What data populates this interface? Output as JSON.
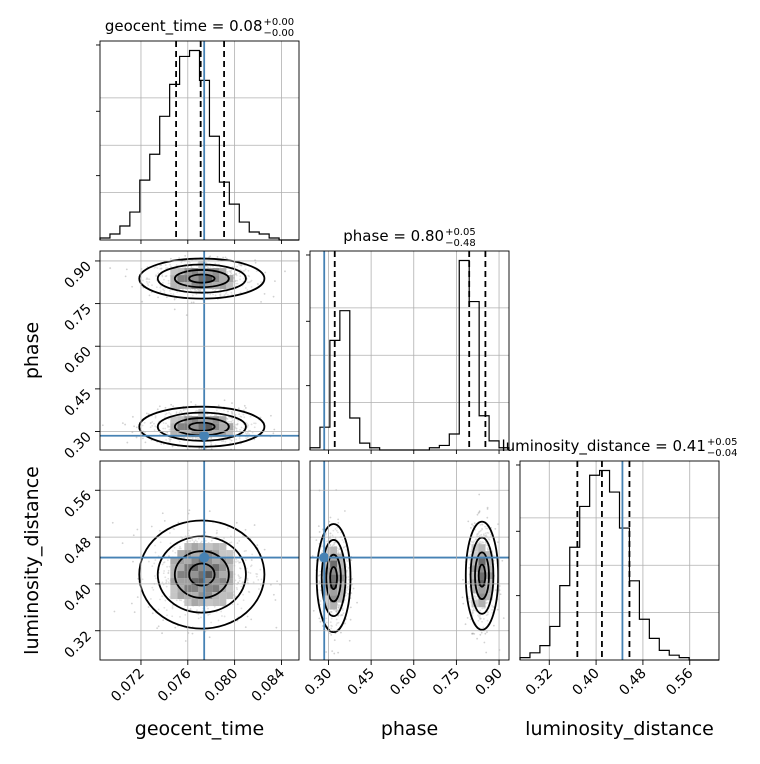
{
  "chart_data": {
    "type": "corner",
    "truth": {
      "geocent_time": 0.0774,
      "phase": 0.285,
      "luminosity_distance": 0.445,
      "color": "#4682b4"
    },
    "params": [
      {
        "name": "geocent_time",
        "axis_label": "geocent_time",
        "title_main": "geocent_time = 0.08",
        "title_sup": "+0.00",
        "title_sub": "−0.00",
        "range": [
          0.0685,
          0.0855
        ],
        "ticks": [
          0.072,
          0.076,
          0.08,
          0.084
        ],
        "tick_labels": [
          "0.072",
          "0.076",
          "0.080",
          "0.084"
        ],
        "quantiles": [
          0.075,
          0.0771,
          0.0791
        ],
        "hist_edges_start": 0.0685,
        "hist_bin_width": 0.00085,
        "hist_counts": [
          1,
          3,
          7,
          14,
          30,
          43,
          62,
          78,
          92,
          95,
          80,
          52,
          29,
          18,
          9,
          4,
          3,
          1,
          0,
          0
        ]
      },
      {
        "name": "phase",
        "axis_label": "phase",
        "title_main": "phase = 0.80",
        "title_sup": "+0.05",
        "title_sub": "−0.48",
        "range": [
          0.235,
          0.935
        ],
        "ticks": [
          0.3,
          0.45,
          0.6,
          0.75,
          0.9
        ],
        "tick_labels": [
          "0.30",
          "0.45",
          "0.60",
          "0.75",
          "0.90"
        ],
        "quantiles": [
          0.322,
          0.795,
          0.852
        ],
        "hist_edges_start": 0.235,
        "hist_bin_width": 0.035,
        "hist_counts": [
          1,
          10,
          48,
          61,
          14,
          3,
          1,
          0,
          0,
          0,
          0,
          0,
          1,
          2,
          7,
          83,
          65,
          15,
          4,
          1
        ]
      },
      {
        "name": "luminosity_distance",
        "axis_label": "luminosity_distance",
        "title_main": "luminosity_distance = 0.41",
        "title_sup": "+0.05",
        "title_sub": "−0.04",
        "range": [
          0.27,
          0.61
        ],
        "ticks": [
          0.32,
          0.4,
          0.48,
          0.56
        ],
        "tick_labels": [
          "0.32",
          "0.40",
          "0.48",
          "0.56"
        ],
        "quantiles": [
          0.368,
          0.41,
          0.457
        ],
        "hist_edges_start": 0.27,
        "hist_bin_width": 0.017,
        "hist_counts": [
          1,
          3,
          6,
          14,
          31,
          47,
          64,
          77,
          79,
          70,
          55,
          33,
          17,
          9,
          4,
          2,
          1,
          0,
          0,
          0
        ]
      }
    ],
    "pairs": [
      {
        "x": "geocent_time",
        "y": "phase",
        "clusters": [
          {
            "cx": 0.0772,
            "cy": 0.838,
            "sx": 0.00225,
            "sy": 0.032
          },
          {
            "cx": 0.0772,
            "cy": 0.317,
            "sx": 0.00225,
            "sy": 0.032
          }
        ]
      },
      {
        "x": "geocent_time",
        "y": "luminosity_distance",
        "clusters": [
          {
            "cx": 0.0772,
            "cy": 0.416,
            "sx": 0.00225,
            "sy": 0.042
          }
        ]
      },
      {
        "x": "phase",
        "y": "luminosity_distance",
        "clusters": [
          {
            "cx": 0.318,
            "cy": 0.41,
            "sx": 0.025,
            "sy": 0.042
          },
          {
            "cx": 0.84,
            "cy": 0.414,
            "sx": 0.024,
            "sy": 0.042
          }
        ]
      }
    ]
  }
}
